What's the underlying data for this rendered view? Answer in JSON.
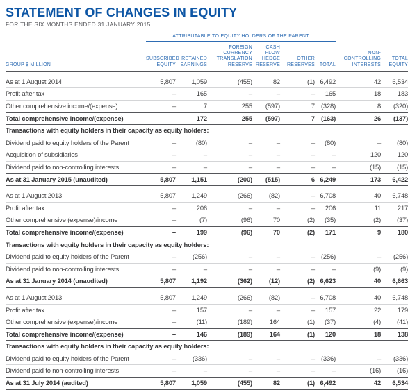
{
  "page": {
    "title": "STATEMENT OF CHANGES IN EQUITY",
    "subtitle": "FOR THE SIX MONTHS ENDED 31 JANUARY 2015"
  },
  "colors": {
    "brand_blue": "#0d56a5",
    "header_blue": "#2e6cb3",
    "rule_dark": "#55565a",
    "rule_light": "#d4d5d7",
    "body_text": "#404042"
  },
  "table": {
    "spanner": "ATTRIBUTABLE TO EQUITY HOLDERS OF THE PARENT",
    "row_header": "GROUP $ MILLION",
    "columns": [
      "SUBSCRIBED\nEQUITY",
      "RETAINED\nEARNINGS",
      "FOREIGN\nCURRENCY\nTRANSLATION\nRESERVE",
      "CASH FLOW\nHEDGE\nRESERVE",
      "OTHER\nRESERVES",
      "TOTAL",
      "NON-\nCONTROLLING\nINTERESTS",
      "TOTAL\nEQUITY"
    ],
    "rows": [
      {
        "type": "opening",
        "label": "As at 1 August 2014",
        "values": [
          "5,807",
          "1,059",
          "(455)",
          "82",
          "(1)",
          "6,492",
          "42",
          "6,534"
        ]
      },
      {
        "type": "normal",
        "label": "Profit after tax",
        "values": [
          "–",
          "165",
          "–",
          "–",
          "–",
          "165",
          "18",
          "183"
        ]
      },
      {
        "type": "normal",
        "label": "Other comprehensive income/(expense)",
        "values": [
          "–",
          "7",
          "255",
          "(597)",
          "7",
          "(328)",
          "8",
          "(320)"
        ]
      },
      {
        "type": "total",
        "label": "Total comprehensive income/(expense)",
        "values": [
          "–",
          "172",
          "255",
          "(597)",
          "7",
          "(163)",
          "26",
          "(137)"
        ]
      },
      {
        "type": "section",
        "label": "Transactions with equity holders in their capacity as equity holders:",
        "values": []
      },
      {
        "type": "normal",
        "label": "Dividend paid to equity holders of the Parent",
        "values": [
          "–",
          "(80)",
          "–",
          "–",
          "–",
          "(80)",
          "–",
          "(80)"
        ]
      },
      {
        "type": "normal",
        "label": "Acquisition of subsidiaries",
        "values": [
          "–",
          "–",
          "–",
          "–",
          "–",
          "–",
          "120",
          "120"
        ]
      },
      {
        "type": "normal",
        "label": "Dividend paid to non-controlling interests",
        "values": [
          "–",
          "–",
          "–",
          "–",
          "–",
          "–",
          "(15)",
          "(15)"
        ]
      },
      {
        "type": "closing",
        "label": "As at 31 January 2015 (unaudited)",
        "values": [
          "5,807",
          "1,151",
          "(200)",
          "(515)",
          "6",
          "6,249",
          "173",
          "6,422"
        ]
      },
      {
        "type": "opening",
        "label": "As at 1 August 2013",
        "values": [
          "5,807",
          "1,249",
          "(266)",
          "(82)",
          "–",
          "6,708",
          "40",
          "6,748"
        ]
      },
      {
        "type": "normal",
        "label": "Profit after tax",
        "values": [
          "–",
          "206",
          "–",
          "–",
          "–",
          "206",
          "11",
          "217"
        ]
      },
      {
        "type": "normal",
        "label": "Other comprehensive (expense)/income",
        "values": [
          "–",
          "(7)",
          "(96)",
          "70",
          "(2)",
          "(35)",
          "(2)",
          "(37)"
        ]
      },
      {
        "type": "total",
        "label": "Total comprehensive income/(expense)",
        "values": [
          "–",
          "199",
          "(96)",
          "70",
          "(2)",
          "171",
          "9",
          "180"
        ]
      },
      {
        "type": "section",
        "label": "Transactions with equity holders in their capacity as equity holders:",
        "values": []
      },
      {
        "type": "normal",
        "label": "Dividend paid to equity holders of the Parent",
        "values": [
          "–",
          "(256)",
          "–",
          "–",
          "–",
          "(256)",
          "–",
          "(256)"
        ]
      },
      {
        "type": "normal",
        "label": "Dividend paid to non-controlling interests",
        "values": [
          "–",
          "–",
          "–",
          "–",
          "–",
          "–",
          "(9)",
          "(9)"
        ]
      },
      {
        "type": "closing",
        "label": "As at 31 January 2014 (unaudited)",
        "values": [
          "5,807",
          "1,192",
          "(362)",
          "(12)",
          "(2)",
          "6,623",
          "40",
          "6,663"
        ]
      },
      {
        "type": "opening",
        "label": "As at 1 August 2013",
        "values": [
          "5,807",
          "1,249",
          "(266)",
          "(82)",
          "–",
          "6,708",
          "40",
          "6,748"
        ]
      },
      {
        "type": "normal",
        "label": "Profit after tax",
        "values": [
          "–",
          "157",
          "–",
          "–",
          "–",
          "157",
          "22",
          "179"
        ]
      },
      {
        "type": "normal",
        "label": "Other comprehensive (expense)/income",
        "values": [
          "–",
          "(11)",
          "(189)",
          "164",
          "(1)",
          "(37)",
          "(4)",
          "(41)"
        ]
      },
      {
        "type": "total",
        "label": "Total comprehensive income/(expense)",
        "values": [
          "–",
          "146",
          "(189)",
          "164",
          "(1)",
          "120",
          "18",
          "138"
        ]
      },
      {
        "type": "section",
        "label": "Transactions with equity holders in their capacity as equity holders:",
        "values": []
      },
      {
        "type": "normal",
        "label": "Dividend paid to equity holders of the Parent",
        "values": [
          "–",
          "(336)",
          "–",
          "–",
          "–",
          "(336)",
          "–",
          "(336)"
        ]
      },
      {
        "type": "normal",
        "label": "Dividend paid to non-controlling interests",
        "values": [
          "–",
          "–",
          "–",
          "–",
          "–",
          "–",
          "(16)",
          "(16)"
        ]
      },
      {
        "type": "closing",
        "label": "As at 31 July 2014 (audited)",
        "values": [
          "5,807",
          "1,059",
          "(455)",
          "82",
          "(1)",
          "6,492",
          "42",
          "6,534"
        ]
      }
    ]
  }
}
